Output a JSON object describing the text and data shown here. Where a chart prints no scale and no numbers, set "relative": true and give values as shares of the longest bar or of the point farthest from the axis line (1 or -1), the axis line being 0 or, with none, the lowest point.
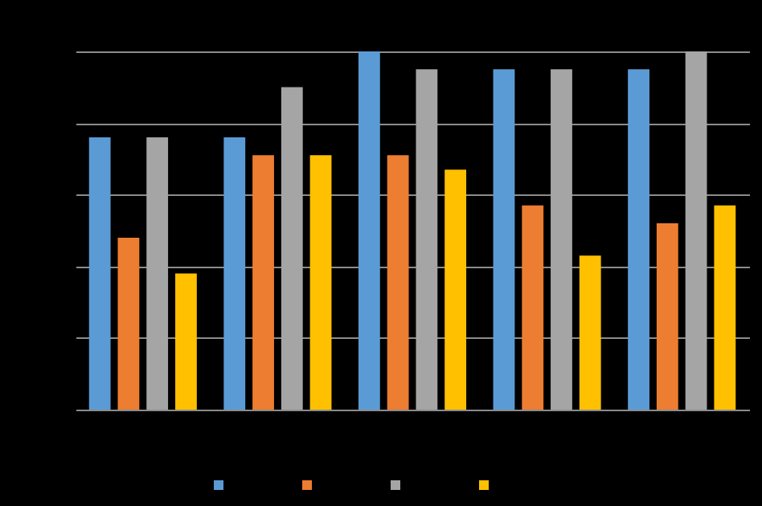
{
  "chart_data": {
    "type": "bar",
    "relative": true,
    "categories": [
      null,
      null,
      null,
      null,
      null
    ],
    "grid": "y",
    "series": [
      {
        "color": "#5b9bd5",
        "values": [
          0.76,
          0.76,
          1,
          0.95,
          0.95
        ]
      },
      {
        "color": "#ed7d31",
        "values": [
          0.48,
          0.71,
          0.71,
          0.57,
          0.52
        ]
      },
      {
        "color": "#a5a5a5",
        "values": [
          0.76,
          0.9,
          0.95,
          0.95,
          1
        ]
      },
      {
        "color": "#ffc000",
        "values": [
          0.38,
          0.71,
          0.67,
          0.43,
          0.57
        ]
      }
    ]
  }
}
